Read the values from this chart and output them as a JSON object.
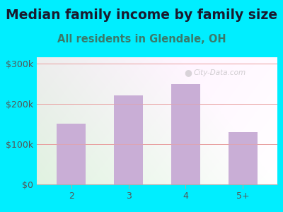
{
  "title": "Median family income by family size",
  "subtitle": "All residents in Glendale, OH",
  "categories": [
    "2",
    "3",
    "4",
    "5+"
  ],
  "values": [
    150000,
    220000,
    248000,
    130000
  ],
  "bar_color": "#c9aed6",
  "background_outer": "#00eeff",
  "title_color": "#1a1a2e",
  "subtitle_color": "#3a7a6a",
  "tick_label_color": "#555555",
  "ytick_labels": [
    "$0",
    "$100k",
    "$200k",
    "$300k"
  ],
  "ytick_values": [
    0,
    100000,
    200000,
    300000
  ],
  "ylim": [
    0,
    315000
  ],
  "watermark": "City-Data.com",
  "title_fontsize": 13.5,
  "subtitle_fontsize": 10.5,
  "tick_fontsize": 9,
  "grid_color": "#e8a0a0"
}
